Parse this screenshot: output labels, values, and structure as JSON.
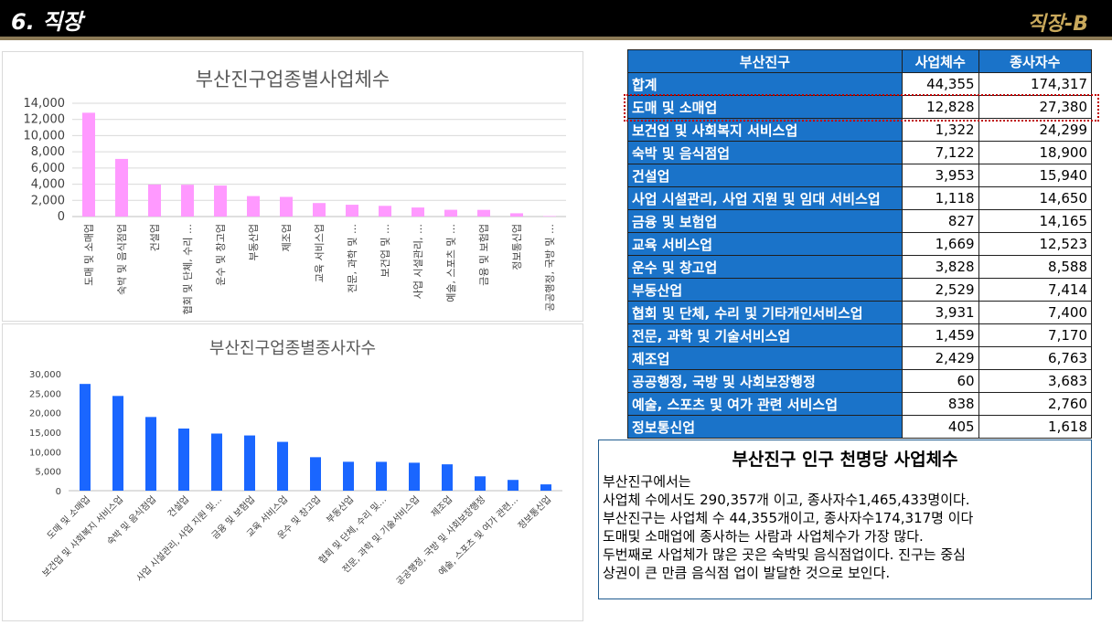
{
  "header": {
    "section_title": "6. 직장",
    "slide_tag": "직장-B"
  },
  "colors": {
    "header_bg": "#000000",
    "header_rule": "#8c7a56",
    "tag_color": "#c9a95c",
    "bar_pink": "#ff99ff",
    "bar_blue": "#1a66ff",
    "table_header": "#1a73c9"
  },
  "chart_data": [
    {
      "type": "bar",
      "title": "부산진구업종별사업체수",
      "categories": [
        "도매 및 소매업",
        "숙박 및 음식점업",
        "건설업",
        "협회 및 단체, 수리 …",
        "운수 및 창고업",
        "부동산업",
        "제조업",
        "교육 서비스업",
        "전문, 과학 및 …",
        "보건업 및 …",
        "사업 시설관리, …",
        "예술, 스포츠 및 …",
        "금융 및 보험업",
        "정보통신업",
        "공공행정, 국방 및 …"
      ],
      "values": [
        12828,
        7122,
        3953,
        3931,
        3828,
        2529,
        2429,
        1669,
        1459,
        1322,
        1118,
        838,
        827,
        405,
        60
      ],
      "ylim": [
        0,
        14000
      ],
      "yticks": [
        "0",
        "2,000",
        "4,000",
        "6,000",
        "8,000",
        "10,000",
        "12,000",
        "14,000"
      ],
      "grid": true
    },
    {
      "type": "bar",
      "title": "부산진구업종별종사자수",
      "categories": [
        "도매 및 소매업",
        "보건업 및 사회복지 서비스업",
        "숙박 및 음식점업",
        "건설업",
        "사업 시설관리, 사업 지원 및…",
        "금융 및 보험업",
        "교육 서비스업",
        "운수 및 창고업",
        "부동산업",
        "협회 및 단체, 수리 및…",
        "전문, 과학 및 기술서비스업",
        "제조업",
        "공공행정, 국방 및 사회보장행정",
        "예술, 스포츠 및 여가 관련…",
        "정보통신업"
      ],
      "values": [
        27380,
        24299,
        18900,
        15940,
        14650,
        14165,
        12523,
        8588,
        7414,
        7400,
        7170,
        6763,
        3683,
        2760,
        1618
      ],
      "ylim": [
        0,
        30000
      ],
      "yticks": [
        "0",
        "5,000",
        "10,000",
        "15,000",
        "20,000",
        "25,000",
        "30,000"
      ],
      "grid": false
    }
  ],
  "table": {
    "headers": [
      "부산진구",
      "사업체수",
      "종사자수"
    ],
    "rows": [
      {
        "name": "합계",
        "biz": "44,355",
        "workers": "174,317"
      },
      {
        "name": "도매 및 소매업",
        "biz": "12,828",
        "workers": "27,380"
      },
      {
        "name": "보건업 및 사회복지 서비스업",
        "biz": "1,322",
        "workers": "24,299"
      },
      {
        "name": "숙박 및 음식점업",
        "biz": "7,122",
        "workers": "18,900"
      },
      {
        "name": "건설업",
        "biz": "3,953",
        "workers": "15,940"
      },
      {
        "name": "사업 시설관리, 사업 지원 및 임대 서비스업",
        "biz": "1,118",
        "workers": "14,650"
      },
      {
        "name": "금융 및 보험업",
        "biz": "827",
        "workers": "14,165"
      },
      {
        "name": "교육 서비스업",
        "biz": "1,669",
        "workers": "12,523"
      },
      {
        "name": "운수 및 창고업",
        "biz": "3,828",
        "workers": "8,588"
      },
      {
        "name": "부동산업",
        "biz": "2,529",
        "workers": "7,414"
      },
      {
        "name": "협회 및 단체, 수리 및 기타개인서비스업",
        "biz": "3,931",
        "workers": "7,400"
      },
      {
        "name": "전문, 과학 및 기술서비스업",
        "biz": "1,459",
        "workers": "7,170"
      },
      {
        "name": "제조업",
        "biz": "2,429",
        "workers": "6,763"
      },
      {
        "name": "공공행정, 국방 및 사회보장행정",
        "biz": "60",
        "workers": "3,683"
      },
      {
        "name": "예술, 스포츠 및 여가 관련 서비스업",
        "biz": "838",
        "workers": "2,760"
      },
      {
        "name": "정보통신업",
        "biz": "405",
        "workers": "1,618"
      }
    ]
  },
  "textbox": {
    "title": "부산진구 인구 천명당 사업체수",
    "lines": [
      "부산진구에서는",
      "사업체 수에서도 290,357개 이고, 종사자수1,465,433명이다.",
      "부산진구는 사업체 수 44,355개이고, 종사자수174,317명 이다",
      "도매및 소매업에 종사하는 사람과 사업체수가 가장 많다.",
      "두번째로 사업체가 많은 곳은 숙박및 음식점업이다. 진구는 중심",
      "상권이 큰 만큼 음식점 업이 발달한 것으로 보인다."
    ]
  }
}
